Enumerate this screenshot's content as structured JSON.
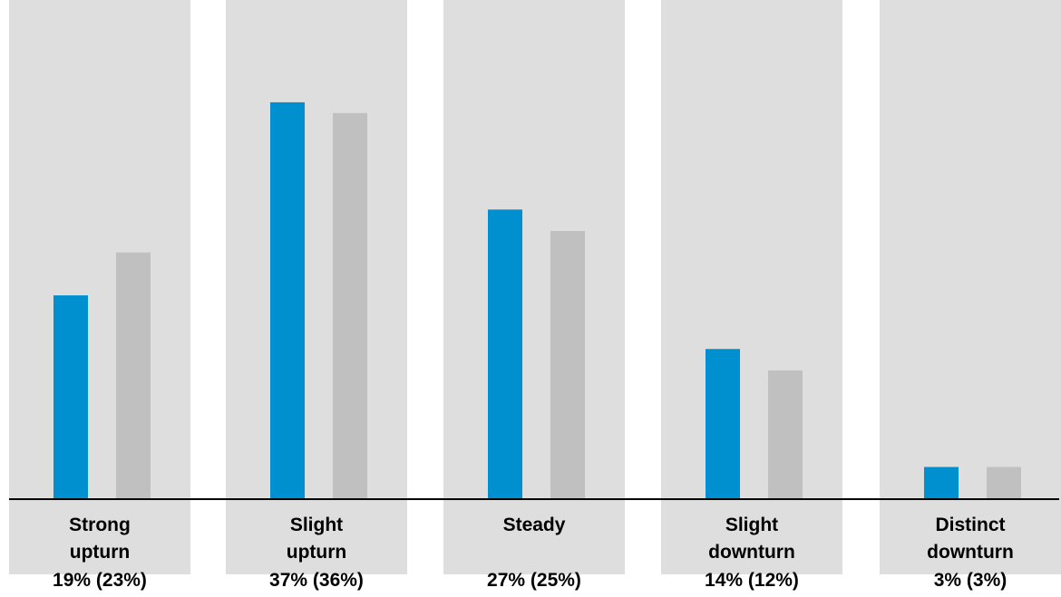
{
  "chart_data": {
    "type": "bar",
    "categories": [
      {
        "line1": "Strong",
        "line2": "upturn",
        "line3": "19% (23%)"
      },
      {
        "line1": "Slight",
        "line2": "upturn",
        "line3": "37% (36%)"
      },
      {
        "line1": "Steady",
        "line2": "",
        "line3": "27% (25%)"
      },
      {
        "line1": "Slight",
        "line2": "downturn",
        "line3": "14% (12%)"
      },
      {
        "line1": "Distinct",
        "line2": "downturn",
        "line3": "3% (3%)"
      }
    ],
    "series": [
      {
        "values": [
          19,
          37,
          27,
          14,
          3
        ],
        "color": "#0090d0"
      },
      {
        "values": [
          23,
          36,
          25,
          12,
          3
        ],
        "color": "#c0c0c0"
      }
    ],
    "ylim": [
      0,
      45
    ],
    "panel_color": "#dedede",
    "axis_color": "#000000",
    "grid": false,
    "legend": "none"
  }
}
